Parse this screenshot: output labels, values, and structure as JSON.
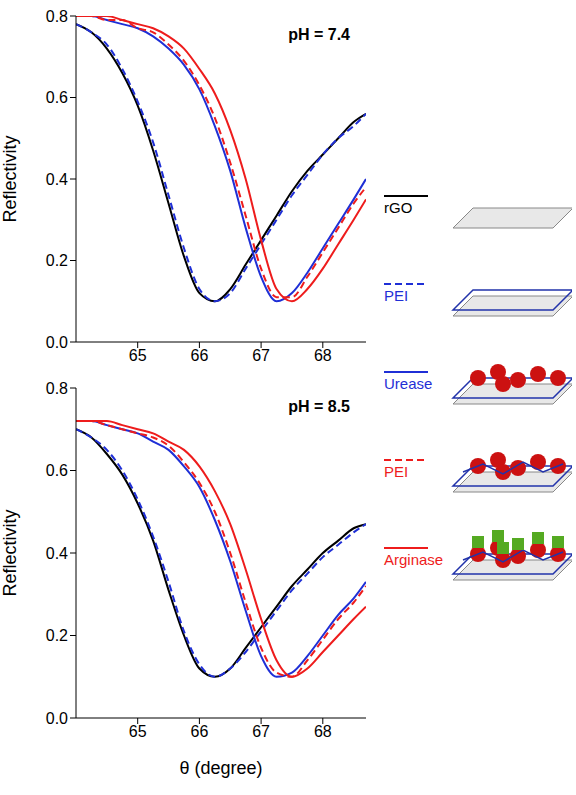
{
  "chart_data": [
    {
      "type": "line",
      "annotation": "pH = 7.4",
      "y_label": "Reflectivity",
      "grid": false,
      "legend": "right",
      "xlim": [
        64,
        68.7
      ],
      "xticks": [
        65,
        66,
        67,
        68
      ],
      "ylim": [
        0,
        0.8
      ],
      "yticks": [
        {
          "value": 0,
          "label": "0.0"
        },
        0.2,
        0.4,
        0.6,
        0.8
      ],
      "x": [
        64,
        64.25,
        64.5,
        64.75,
        65,
        65.25,
        65.5,
        65.75,
        66,
        66.25,
        66.5,
        66.75,
        67,
        67.25,
        67.5,
        67.75,
        68,
        68.25,
        68.5,
        68.7
      ],
      "series": [
        {
          "name": "rGO",
          "color": "#000000",
          "line_style": "solid",
          "values": [
            0.78,
            0.76,
            0.72,
            0.66,
            0.58,
            0.47,
            0.34,
            0.21,
            0.12,
            0.1,
            0.13,
            0.19,
            0.25,
            0.31,
            0.37,
            0.42,
            0.46,
            0.5,
            0.54,
            0.56
          ]
        },
        {
          "name": "PEI",
          "color": "#1f2fd6",
          "line_style": "dashed",
          "values": [
            0.78,
            0.76,
            0.73,
            0.67,
            0.59,
            0.49,
            0.36,
            0.23,
            0.13,
            0.1,
            0.12,
            0.18,
            0.24,
            0.3,
            0.36,
            0.41,
            0.46,
            0.5,
            0.53,
            0.56
          ]
        },
        {
          "name": "Urease",
          "color": "#1f2fd6",
          "line_style": "solid",
          "values": [
            0.8,
            0.8,
            0.79,
            0.78,
            0.77,
            0.75,
            0.72,
            0.68,
            0.62,
            0.53,
            0.42,
            0.28,
            0.16,
            0.1,
            0.12,
            0.17,
            0.23,
            0.29,
            0.35,
            0.4
          ]
        },
        {
          "name": "PEI",
          "color": "#ee1c1c",
          "line_style": "dashed",
          "values": [
            0.8,
            0.8,
            0.79,
            0.79,
            0.77,
            0.76,
            0.73,
            0.69,
            0.63,
            0.55,
            0.44,
            0.31,
            0.18,
            0.11,
            0.11,
            0.16,
            0.22,
            0.28,
            0.34,
            0.38
          ]
        },
        {
          "name": "Arginase",
          "color": "#ee1c1c",
          "line_style": "solid",
          "values": [
            0.8,
            0.8,
            0.8,
            0.79,
            0.78,
            0.77,
            0.75,
            0.72,
            0.67,
            0.61,
            0.52,
            0.4,
            0.25,
            0.13,
            0.1,
            0.13,
            0.18,
            0.24,
            0.3,
            0.35
          ]
        }
      ]
    },
    {
      "type": "line",
      "annotation": "pH = 8.5",
      "y_label": "Reflectivity",
      "x_label": "θ (degree)",
      "grid": false,
      "xlim": [
        64,
        68.7
      ],
      "xticks": [
        65,
        66,
        67,
        68
      ],
      "ylim": [
        0,
        0.8
      ],
      "yticks": [
        {
          "value": 0,
          "label": "0.0"
        },
        0.2,
        0.4,
        0.6,
        0.8
      ],
      "x": [
        64,
        64.25,
        64.5,
        64.75,
        65,
        65.25,
        65.5,
        65.75,
        66,
        66.25,
        66.5,
        66.75,
        67,
        67.25,
        67.5,
        67.75,
        68,
        68.25,
        68.5,
        68.7
      ],
      "series": [
        {
          "name": "rGO",
          "color": "#000000",
          "line_style": "solid",
          "values": [
            0.7,
            0.68,
            0.64,
            0.59,
            0.52,
            0.43,
            0.31,
            0.2,
            0.12,
            0.1,
            0.12,
            0.17,
            0.22,
            0.27,
            0.32,
            0.36,
            0.4,
            0.43,
            0.46,
            0.47
          ]
        },
        {
          "name": "PEI",
          "color": "#1f2fd6",
          "line_style": "dashed",
          "values": [
            0.7,
            0.68,
            0.65,
            0.6,
            0.53,
            0.44,
            0.33,
            0.21,
            0.13,
            0.1,
            0.12,
            0.16,
            0.21,
            0.26,
            0.31,
            0.35,
            0.39,
            0.42,
            0.45,
            0.47
          ]
        },
        {
          "name": "Urease",
          "color": "#1f2fd6",
          "line_style": "solid",
          "values": [
            0.72,
            0.72,
            0.71,
            0.7,
            0.69,
            0.67,
            0.65,
            0.61,
            0.56,
            0.48,
            0.38,
            0.26,
            0.15,
            0.1,
            0.11,
            0.15,
            0.2,
            0.25,
            0.29,
            0.33
          ]
        },
        {
          "name": "PEI",
          "color": "#ee1c1c",
          "line_style": "dashed",
          "values": [
            0.72,
            0.72,
            0.71,
            0.7,
            0.69,
            0.68,
            0.66,
            0.62,
            0.57,
            0.5,
            0.4,
            0.28,
            0.17,
            0.11,
            0.1,
            0.14,
            0.19,
            0.24,
            0.28,
            0.32
          ]
        },
        {
          "name": "Arginase",
          "color": "#ee1c1c",
          "line_style": "solid",
          "values": [
            0.72,
            0.72,
            0.72,
            0.71,
            0.7,
            0.69,
            0.67,
            0.65,
            0.61,
            0.55,
            0.47,
            0.36,
            0.24,
            0.14,
            0.1,
            0.12,
            0.16,
            0.2,
            0.24,
            0.27
          ]
        }
      ]
    }
  ]
}
